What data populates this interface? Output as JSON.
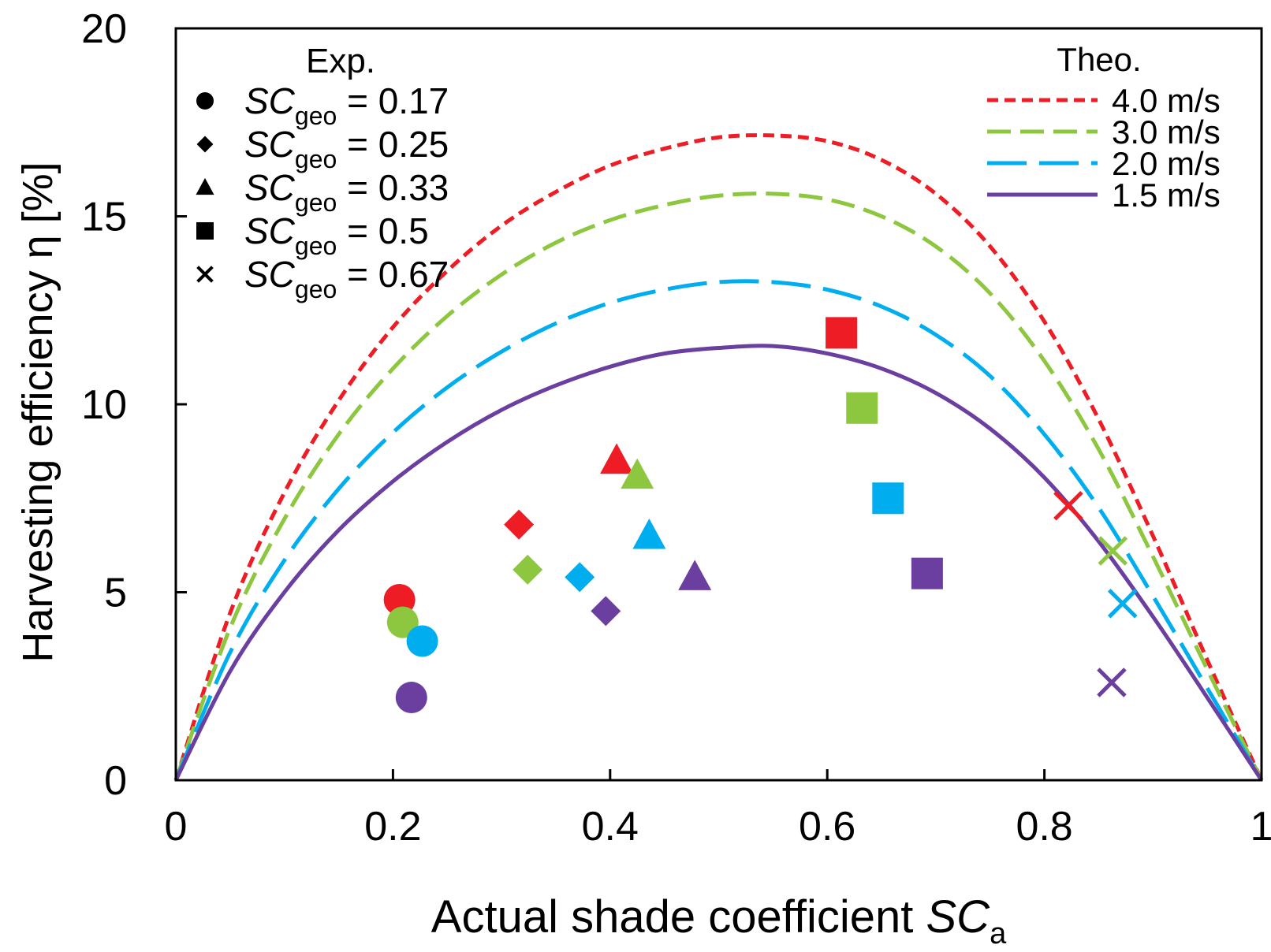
{
  "chart_data": {
    "type": "scatter",
    "xlabel": "Actual shade coefficient",
    "xlabel_symbol": "SC",
    "xlabel_sub": "a",
    "ylabel": "Harvesting efficiency η [%]",
    "xlim": [
      0,
      1
    ],
    "ylim": [
      0,
      20
    ],
    "x_ticks": [
      0,
      0.2,
      0.4,
      0.6,
      0.8,
      1
    ],
    "x_tick_labels": [
      "0",
      "0.2",
      "0.4",
      "0.6",
      "0.8",
      "1"
    ],
    "y_ticks": [
      0,
      5,
      10,
      15,
      20
    ],
    "y_tick_labels": [
      "0",
      "5",
      "10",
      "15",
      "20"
    ],
    "grid": false,
    "exp_legend": {
      "title": "Exp.",
      "placement": "top-left",
      "symbol": "SC",
      "sub": "geo",
      "entries": [
        {
          "marker": "circle",
          "label": "= 0.17"
        },
        {
          "marker": "diamond",
          "label": "= 0.25"
        },
        {
          "marker": "triangle",
          "label": "= 0.33"
        },
        {
          "marker": "square",
          "label": "= 0.5"
        },
        {
          "marker": "cross",
          "label": "= 0.67"
        }
      ]
    },
    "theo_legend": {
      "title": "Theo.",
      "placement": "top-right"
    },
    "series": [
      {
        "name": "4.0 m/s",
        "color": "#ee1c24",
        "dash": "short",
        "curve": {
          "x": [
            0,
            0.05,
            0.1,
            0.15,
            0.2,
            0.25,
            0.3,
            0.35,
            0.4,
            0.45,
            0.5,
            0.55,
            0.6,
            0.65,
            0.7,
            0.75,
            0.8,
            0.85,
            0.9,
            0.95,
            1.0
          ],
          "y": [
            0,
            4.45,
            7.65,
            10.1,
            12.05,
            13.55,
            14.75,
            15.65,
            16.35,
            16.8,
            17.1,
            17.15,
            17.0,
            16.5,
            15.6,
            14.2,
            12.2,
            9.6,
            6.5,
            3.2,
            0
          ]
        },
        "points": {
          "circle": [
            0.206,
            4.8
          ],
          "diamond": [
            0.316,
            6.8
          ],
          "triangle": [
            0.406,
            8.5
          ],
          "square": [
            0.613,
            11.9
          ],
          "cross": [
            0.822,
            7.3
          ]
        }
      },
      {
        "name": "3.0 m/s",
        "color": "#8dc63f",
        "dash": "medium",
        "curve": {
          "x": [
            0,
            0.05,
            0.1,
            0.15,
            0.2,
            0.25,
            0.3,
            0.35,
            0.4,
            0.45,
            0.5,
            0.55,
            0.6,
            0.65,
            0.7,
            0.75,
            0.8,
            0.85,
            0.9,
            0.95,
            1.0
          ],
          "y": [
            0,
            4.05,
            6.95,
            9.2,
            10.95,
            12.35,
            13.45,
            14.3,
            14.9,
            15.3,
            15.55,
            15.6,
            15.45,
            15.0,
            14.2,
            12.95,
            11.15,
            8.8,
            5.95,
            2.95,
            0
          ]
        },
        "points": {
          "circle": [
            0.209,
            4.2
          ],
          "diamond": [
            0.324,
            5.6
          ],
          "triangle": [
            0.425,
            8.1
          ],
          "square": [
            0.632,
            9.9
          ],
          "cross": [
            0.863,
            6.1
          ]
        }
      },
      {
        "name": "2.0 m/s",
        "color": "#00aeef",
        "dash": "long",
        "curve": {
          "x": [
            0,
            0.05,
            0.1,
            0.15,
            0.2,
            0.25,
            0.3,
            0.35,
            0.4,
            0.45,
            0.5,
            0.55,
            0.6,
            0.65,
            0.7,
            0.75,
            0.8,
            0.85,
            0.9,
            0.95,
            1.0
          ],
          "y": [
            0,
            3.4,
            5.85,
            7.75,
            9.25,
            10.45,
            11.4,
            12.15,
            12.7,
            13.05,
            13.25,
            13.25,
            13.05,
            12.6,
            11.85,
            10.75,
            9.2,
            7.25,
            4.9,
            2.45,
            0
          ]
        },
        "points": {
          "circle": [
            0.227,
            3.7
          ],
          "diamond": [
            0.372,
            5.4
          ],
          "triangle": [
            0.436,
            6.5
          ],
          "square": [
            0.656,
            7.5
          ],
          "cross": [
            0.872,
            4.7
          ]
        }
      },
      {
        "name": "1.5 m/s",
        "color": "#6a3fa0",
        "dash": "solid",
        "curve": {
          "x": [
            0,
            0.05,
            0.1,
            0.15,
            0.2,
            0.25,
            0.3,
            0.35,
            0.4,
            0.45,
            0.5,
            0.55,
            0.6,
            0.65,
            0.7,
            0.75,
            0.8,
            0.85,
            0.9,
            0.95,
            1.0
          ],
          "y": [
            0,
            2.9,
            5.0,
            6.65,
            7.95,
            9.0,
            9.85,
            10.5,
            11.0,
            11.35,
            11.5,
            11.55,
            11.35,
            10.95,
            10.3,
            9.35,
            8.05,
            6.35,
            4.35,
            2.2,
            0
          ]
        },
        "points": {
          "circle": [
            0.217,
            2.2
          ],
          "diamond": [
            0.396,
            4.5
          ],
          "triangle": [
            0.478,
            5.4
          ],
          "square": [
            0.692,
            5.5
          ],
          "cross": [
            0.862,
            2.6
          ]
        }
      }
    ]
  }
}
